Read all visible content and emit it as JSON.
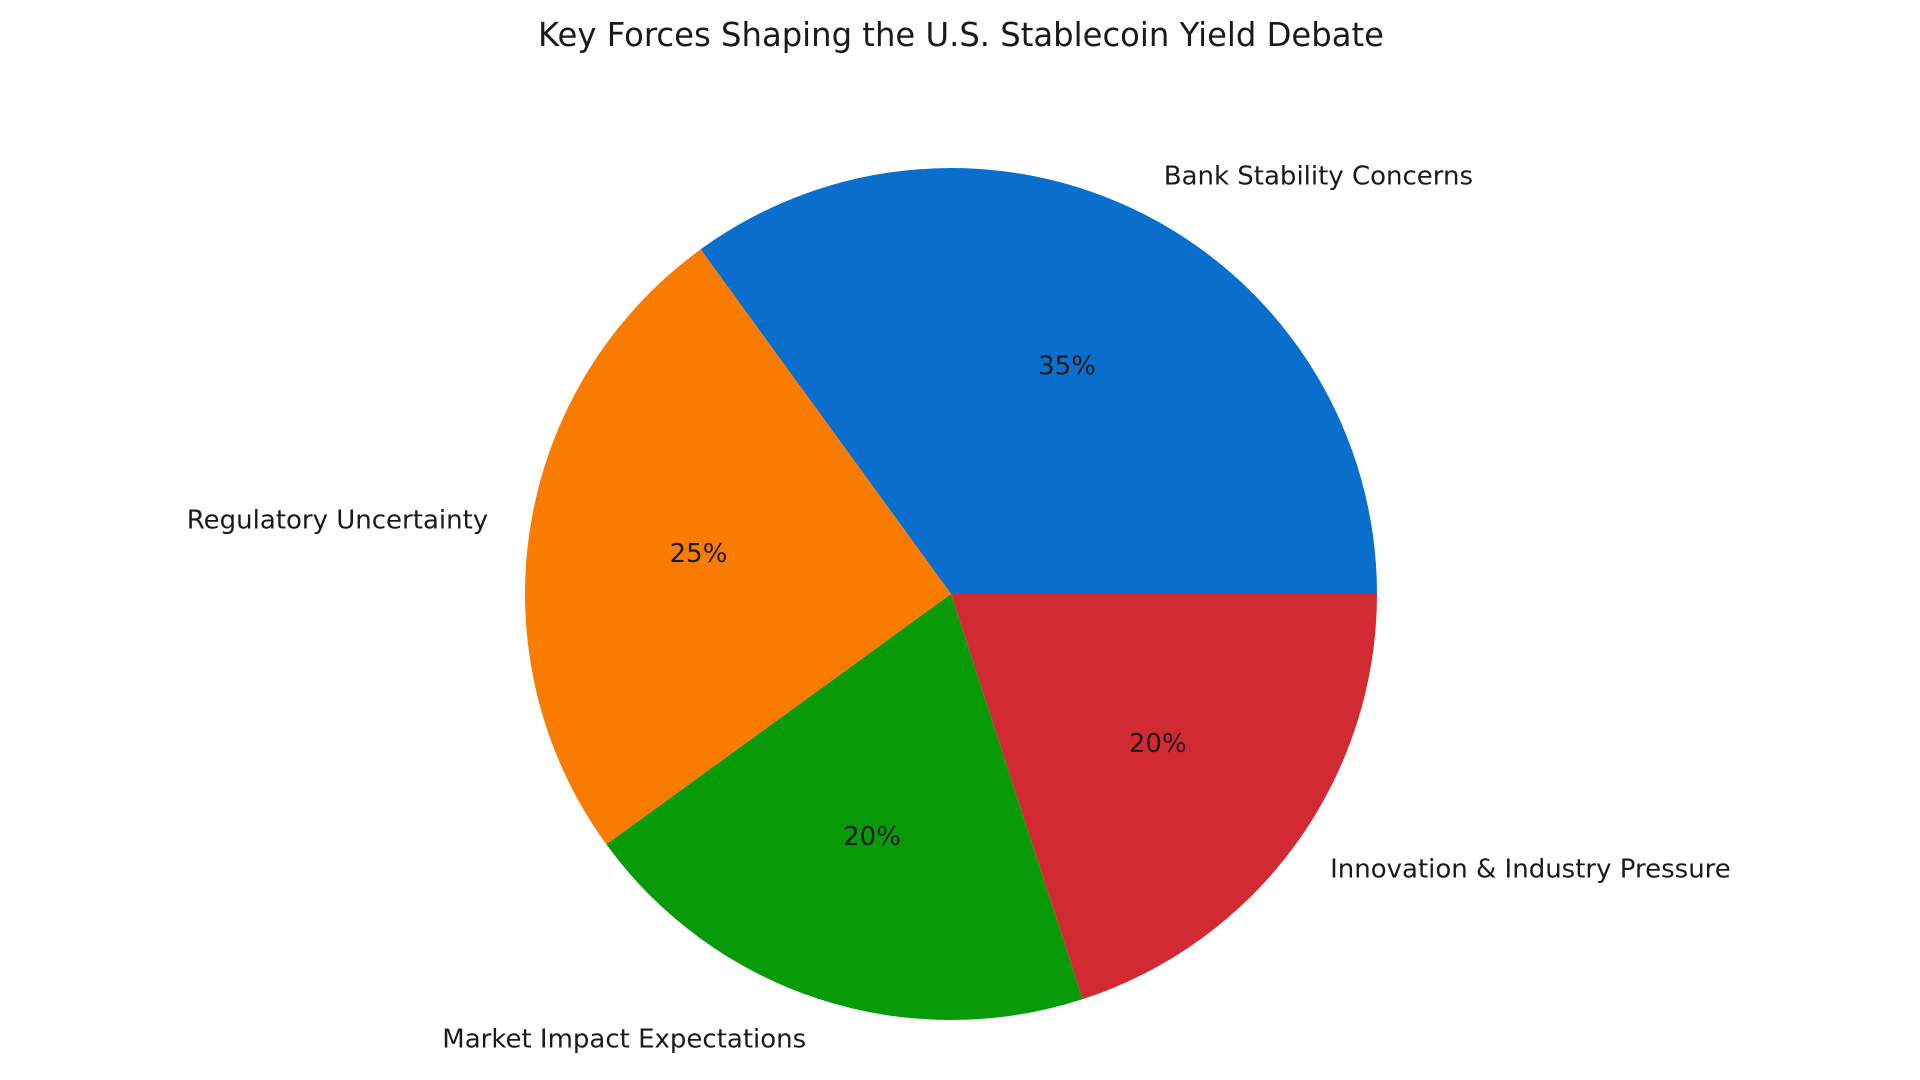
{
  "chart_data": {
    "type": "pie",
    "title": "Key Forces Shaping the U.S. Stablecoin Yield Debate",
    "categories": [
      "Bank Stability Concerns",
      "Regulatory Uncertainty",
      "Market Impact Expectations",
      "Innovation & Industry Pressure"
    ],
    "values": [
      35,
      25,
      20,
      20
    ],
    "value_labels": [
      "35%",
      "25%",
      "20%",
      "20%"
    ],
    "colors": [
      "#0a6fcc",
      "#f97c00",
      "#089a08",
      "#d22a32"
    ],
    "start_angle_deg": 0,
    "direction": "counterclockwise",
    "legend": "none",
    "grid": false
  }
}
